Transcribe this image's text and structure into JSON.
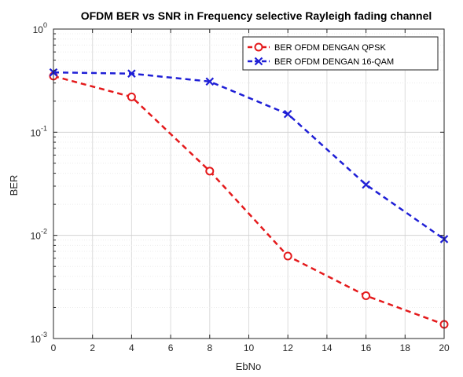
{
  "chart_data": {
    "type": "line",
    "title": "OFDM BER vs SNR in Frequency selective Rayleigh fading channel",
    "xlabel": "EbNo",
    "ylabel": "BER",
    "xlim": [
      0,
      20
    ],
    "ylim": [
      0.001,
      1
    ],
    "yscale": "log",
    "grid": true,
    "minor_grid": true,
    "legend_position": "top-right",
    "x_ticks": [
      "0",
      "2",
      "4",
      "6",
      "8",
      "10",
      "12",
      "14",
      "16",
      "18",
      "20"
    ],
    "y_ticks": [
      {
        "base": "10",
        "exp": "0"
      },
      {
        "base": "10",
        "exp": "-1"
      },
      {
        "base": "10",
        "exp": "-2"
      },
      {
        "base": "10",
        "exp": "-3"
      }
    ],
    "series": [
      {
        "name": "BER OFDM DENGAN QPSK",
        "color": "#e41a1c",
        "marker": "circle",
        "line_style": "dashed",
        "x": [
          0,
          4,
          8,
          12,
          16,
          20
        ],
        "y": [
          0.35,
          0.22,
          0.042,
          0.0063,
          0.0026,
          0.00137
        ]
      },
      {
        "name": "BER OFDM DENGAN 16-QAM",
        "color": "#1f1fd6",
        "marker": "x",
        "line_style": "dashed",
        "x": [
          0,
          4,
          8,
          12,
          16,
          20
        ],
        "y": [
          0.38,
          0.37,
          0.31,
          0.15,
          0.031,
          0.0092
        ]
      }
    ]
  }
}
